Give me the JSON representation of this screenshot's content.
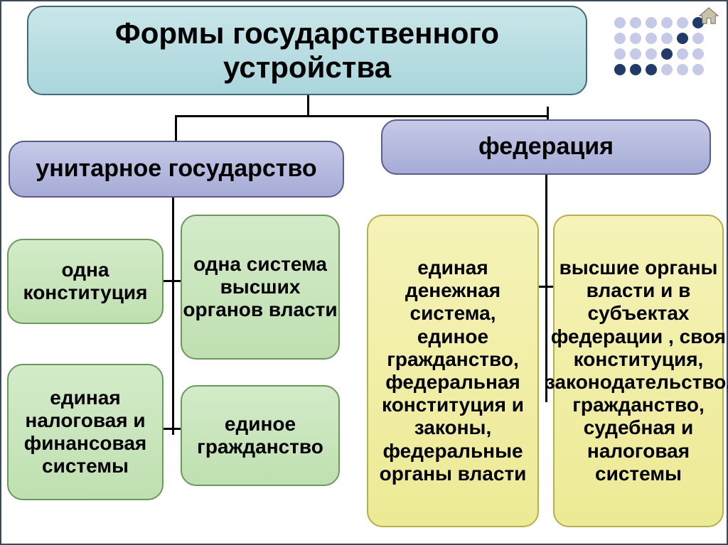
{
  "title": "Формы государственного устройства",
  "branches": {
    "left": {
      "label": "унитарное государство",
      "items": [
        "одна конституция",
        "одна система высших органов власти",
        "единая налоговая и финансовая системы",
        "единое гражданство"
      ]
    },
    "right": {
      "label": "федерация",
      "items": [
        "единая денежная система, единое гражданство, федеральная конституция и законы, федеральные органы власти",
        "высшие органы власти и в субъектах федерации , своя конституция, законодательство, гражданство, судебная и налоговая системы"
      ]
    }
  },
  "styling": {
    "slide_size": [
      1024,
      767
    ],
    "border_color": "#3a4a5a",
    "title_box": {
      "gradient": [
        "#c9e6e9",
        "#a9d6dc"
      ],
      "border": "#3f6a78",
      "font_size": 42,
      "radius": 22
    },
    "subtitle_box": {
      "gradient": [
        "#c5cae8",
        "#a6abd6"
      ],
      "border": "#5a5c8a",
      "font_size": 34,
      "radius": 22
    },
    "green_box": {
      "gradient": [
        "#d3ebc9",
        "#bfe0b0"
      ],
      "border": "#6a9a5a",
      "font_size": 28,
      "radius": 22
    },
    "yellow_box": {
      "gradient": [
        "#f5f3b8",
        "#edea95"
      ],
      "border": "#b5b04a",
      "font_size": 28,
      "radius": 22
    },
    "connector_color": "#000000",
    "connector_width": 3
  },
  "decoration": {
    "home_icon_color": "#a09878",
    "dot_grid": {
      "rows": 4,
      "cols": 6,
      "dot_size": 16,
      "gap": 4,
      "colors": [
        [
          "#c5cae8",
          "#c5cae8",
          "#c5cae8",
          "#c5cae8",
          "#c5cae8",
          "#203a6a"
        ],
        [
          "#c5cae8",
          "#c5cae8",
          "#c5cae8",
          "#c5cae8",
          "#203a6a",
          "#c5cae8"
        ],
        [
          "#c5cae8",
          "#c5cae8",
          "#c5cae8",
          "#203a6a",
          "#c5cae8",
          "#c5cae8"
        ],
        [
          "#203a6a",
          "#203a6a",
          "#203a6a",
          "#c5cae8",
          "#c5cae8",
          "#c5cae8"
        ]
      ]
    }
  }
}
